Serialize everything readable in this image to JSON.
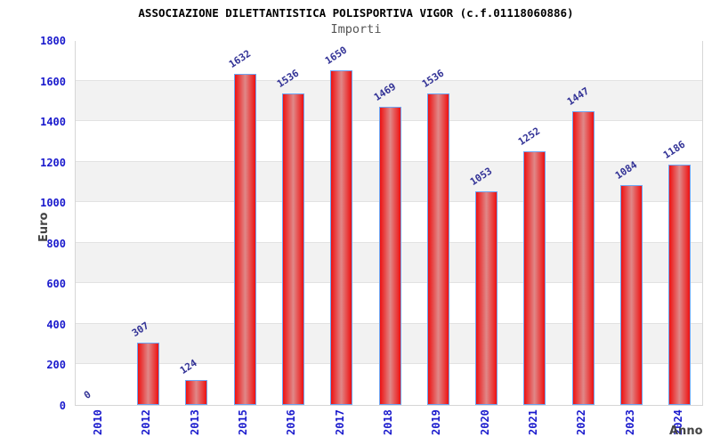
{
  "chart_data": {
    "type": "bar",
    "title": "ASSOCIAZIONE DILETTANTISTICA POLISPORTIVA VIGOR (c.f.01118060886)",
    "subtitle": "Importi",
    "xlabel": "Anno",
    "ylabel": "Euro",
    "categories": [
      "2010",
      "2012",
      "2013",
      "2015",
      "2016",
      "2017",
      "2018",
      "2019",
      "2020",
      "2021",
      "2022",
      "2023",
      "2024"
    ],
    "values": [
      0,
      307,
      124,
      1632,
      1536,
      1650,
      1469,
      1536,
      1053,
      1252,
      1447,
      1084,
      1186
    ],
    "ylim": [
      0,
      1800
    ],
    "ytick_step": 200,
    "yticks": [
      0,
      200,
      400,
      600,
      800,
      1000,
      1200,
      1400,
      1600,
      1800
    ],
    "legend": "none",
    "grid": "alternating horizontal bands every 200 units",
    "value_labels": "shown above each bar, rotated",
    "colors": {
      "bar_fill_edge": "#ee1111",
      "bar_fill_center": "#e08888",
      "bar_border": "#6ea4f2",
      "tick_label": "#1a1acd",
      "value_label": "#323296",
      "axis_title": "#444444",
      "band_gray": "#f2f2f2",
      "band_white": "#ffffff",
      "grid_line": "#e2e2e2",
      "title": "#000000",
      "subtitle": "#555555"
    }
  }
}
